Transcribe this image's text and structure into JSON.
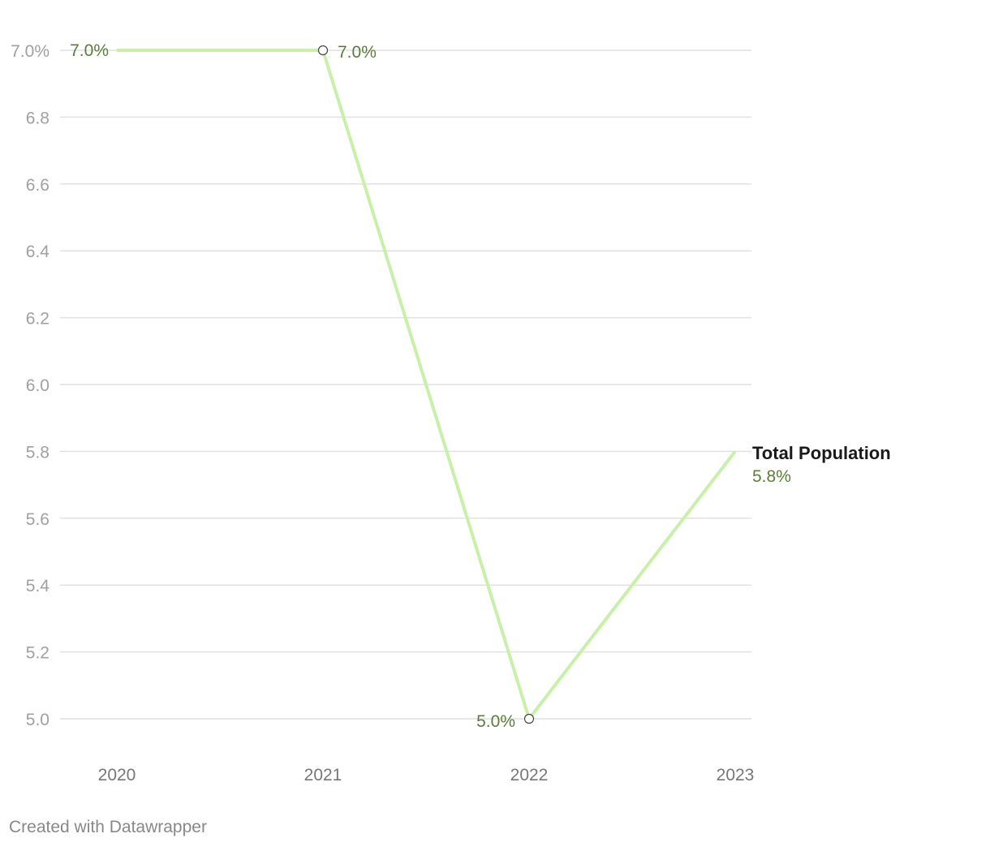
{
  "chart_data": {
    "type": "line",
    "title": "",
    "xlabel": "",
    "ylabel": "",
    "x": [
      "2020",
      "2021",
      "2022",
      "2023"
    ],
    "series": [
      {
        "name": "Total Population",
        "values": [
          7.0,
          7.0,
          5.0,
          5.8
        ],
        "labels": [
          "7.0%",
          "7.0%",
          "5.0%",
          "5.8%"
        ],
        "color": "#c8f0a8",
        "label_color": "#5a7d3a"
      }
    ],
    "ylim": [
      5.0,
      7.0
    ],
    "yticks": [
      5.0,
      5.2,
      5.4,
      5.6,
      5.8,
      6.0,
      6.2,
      6.4,
      6.6,
      6.8,
      7.0
    ],
    "ytick_labels": [
      "5.0",
      "5.2",
      "5.4",
      "5.6",
      "5.8",
      "6.0",
      "6.2",
      "6.4",
      "6.6",
      "6.8",
      "7.0%"
    ],
    "grid": true,
    "colors": {
      "grid": "#e1e1e1",
      "tick_text": "#a0a0a0",
      "x_tick_text": "#777777",
      "series_name_text": "#1a1a1a"
    }
  },
  "footer": {
    "credit": "Created with Datawrapper"
  }
}
